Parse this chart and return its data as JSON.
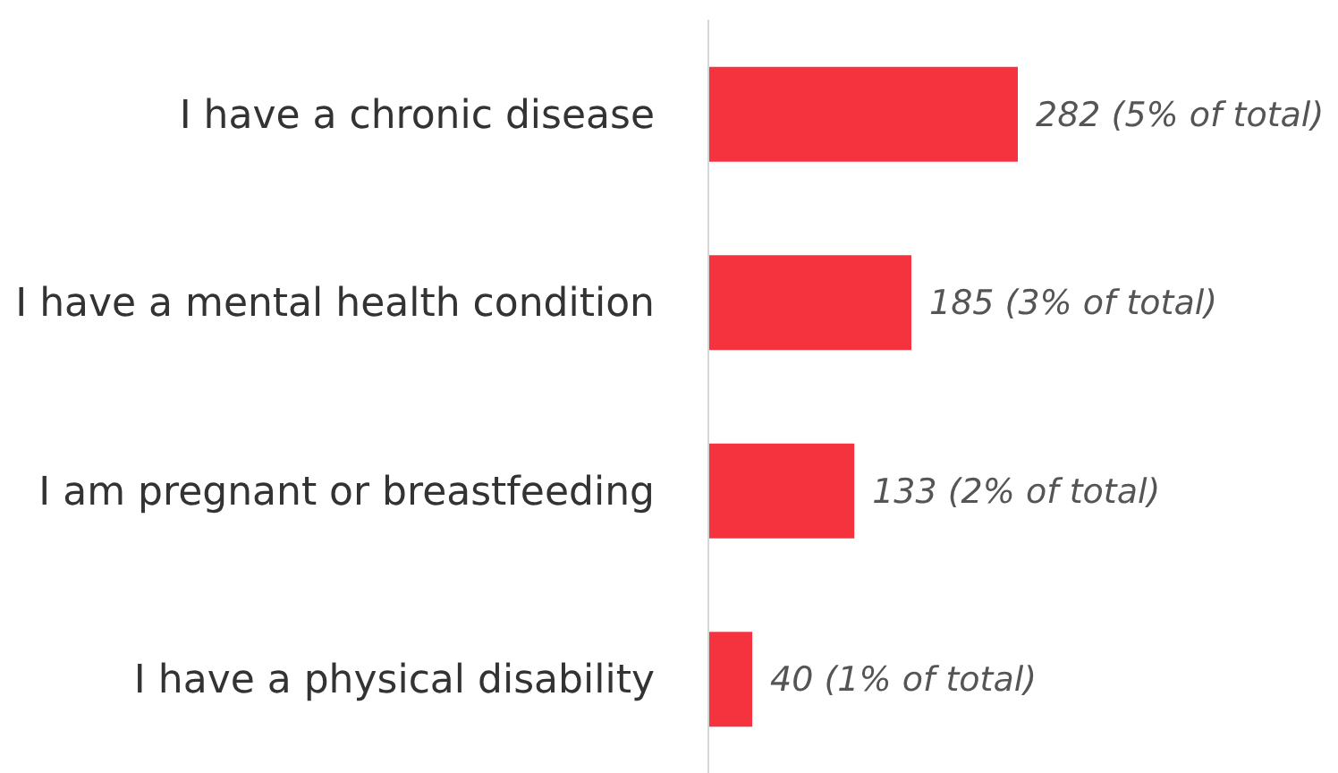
{
  "chart_data": {
    "type": "bar",
    "orientation": "horizontal",
    "categories": [
      "I have a chronic disease",
      "I have a mental health condition",
      "I am pregnant or breastfeeding",
      "I have a physical disability"
    ],
    "values": [
      282,
      185,
      133,
      40
    ],
    "value_labels": [
      "282 (5% of total)",
      "185 (3% of total)",
      "133 (2% of total)",
      "40 (1% of total)"
    ],
    "color": "#f5333f",
    "grid": false,
    "legend": false
  }
}
